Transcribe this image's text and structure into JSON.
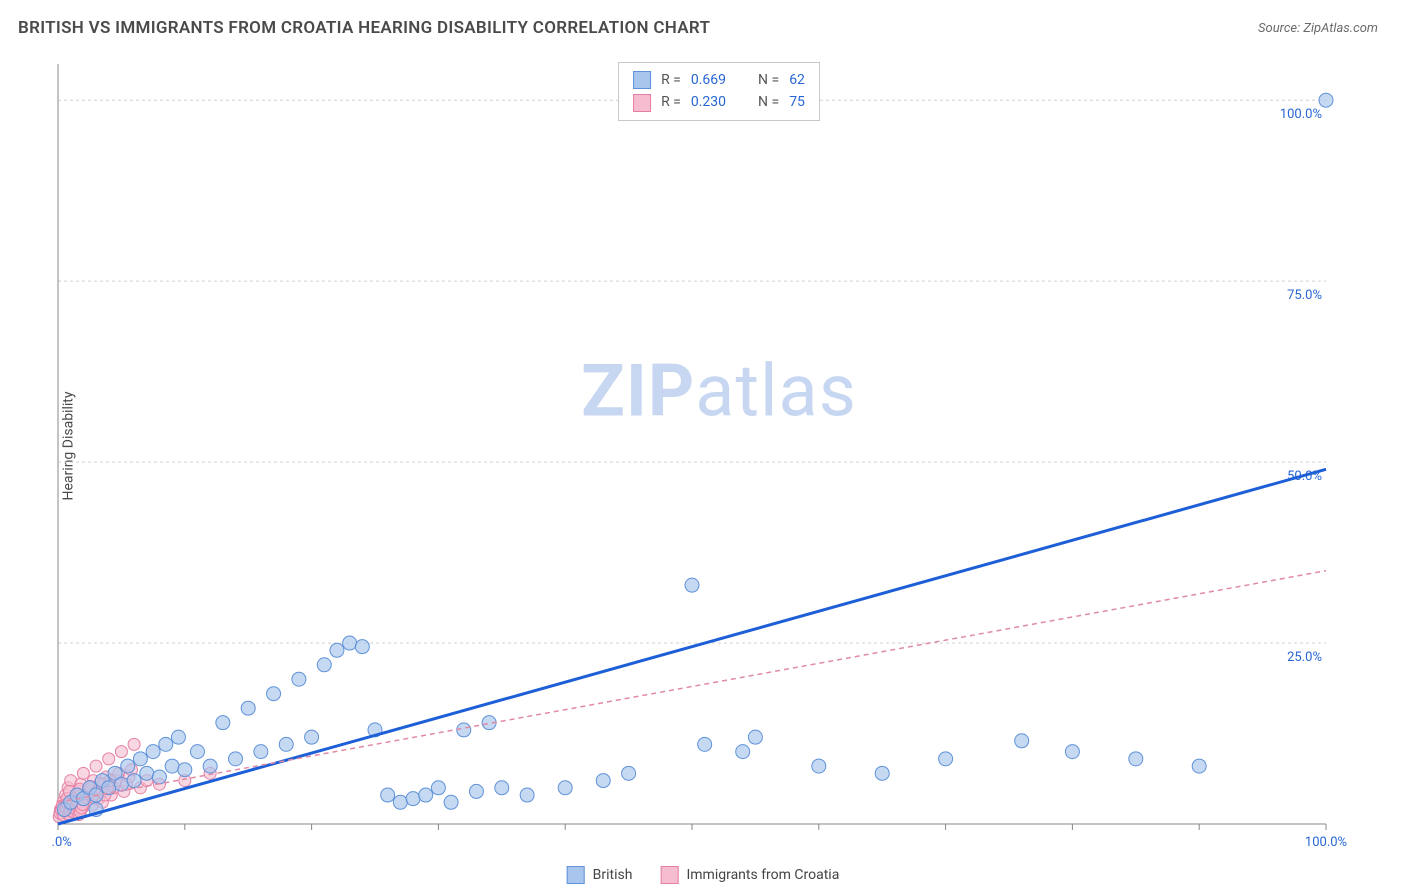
{
  "header": {
    "title": "BRITISH VS IMMIGRANTS FROM CROATIA HEARING DISABILITY CORRELATION CHART",
    "source": "Source: ZipAtlas.com"
  },
  "yaxis": {
    "label": "Hearing Disability"
  },
  "watermark": {
    "zip": "ZIP",
    "atlas": "atlas"
  },
  "chart": {
    "type": "scatter",
    "xlim": [
      0,
      100
    ],
    "ylim": [
      0,
      105
    ],
    "xtick_step": 10,
    "xtick_labels": {
      "0": "0.0%",
      "100": "100.0%"
    },
    "ytick_positions": [
      25,
      50,
      75,
      100
    ],
    "ytick_labels": [
      "25.0%",
      "50.0%",
      "75.0%",
      "100.0%"
    ],
    "grid_color": "#d0d0d0",
    "axis_color": "#888888",
    "background_color": "#ffffff",
    "series": [
      {
        "name": "British",
        "marker_fill": "#a7c5ed",
        "marker_stroke": "#5f92d8",
        "marker_opacity": 0.65,
        "marker_radius": 7,
        "trend": {
          "stroke": "#1d5fd6",
          "width": 3,
          "dash": "none",
          "x1": 0,
          "y1": 0,
          "x2": 100,
          "y2": 49
        },
        "legend_swatch_fill": "#a7c5ed",
        "legend_swatch_stroke": "#5f92d8",
        "stats": {
          "R": "0.669",
          "N": "62"
        },
        "points": [
          [
            0.5,
            2
          ],
          [
            1,
            3
          ],
          [
            1.5,
            4
          ],
          [
            2,
            3.5
          ],
          [
            2.5,
            5
          ],
          [
            3,
            4
          ],
          [
            3.5,
            6
          ],
          [
            4,
            5
          ],
          [
            4.5,
            7
          ],
          [
            5,
            5.5
          ],
          [
            5.5,
            8
          ],
          [
            6,
            6
          ],
          [
            6.5,
            9
          ],
          [
            7,
            7
          ],
          [
            7.5,
            10
          ],
          [
            8,
            6.5
          ],
          [
            8.5,
            11
          ],
          [
            9,
            8
          ],
          [
            9.5,
            12
          ],
          [
            10,
            7.5
          ],
          [
            11,
            10
          ],
          [
            12,
            8
          ],
          [
            13,
            14
          ],
          [
            14,
            9
          ],
          [
            15,
            16
          ],
          [
            16,
            10
          ],
          [
            17,
            18
          ],
          [
            18,
            11
          ],
          [
            19,
            20
          ],
          [
            20,
            12
          ],
          [
            21,
            22
          ],
          [
            22,
            24
          ],
          [
            23,
            25
          ],
          [
            24,
            24.5
          ],
          [
            25,
            13
          ],
          [
            26,
            4
          ],
          [
            27,
            3
          ],
          [
            28,
            3.5
          ],
          [
            29,
            4
          ],
          [
            30,
            5
          ],
          [
            31,
            3
          ],
          [
            32,
            13
          ],
          [
            33,
            4.5
          ],
          [
            34,
            14
          ],
          [
            35,
            5
          ],
          [
            37,
            4
          ],
          [
            40,
            5
          ],
          [
            43,
            6
          ],
          [
            45,
            7
          ],
          [
            50,
            33
          ],
          [
            51,
            11
          ],
          [
            54,
            10
          ],
          [
            55,
            12
          ],
          [
            60,
            8
          ],
          [
            65,
            7
          ],
          [
            70,
            9
          ],
          [
            76,
            11.5
          ],
          [
            80,
            10
          ],
          [
            85,
            9
          ],
          [
            90,
            8
          ],
          [
            100,
            100
          ],
          [
            3,
            2
          ]
        ]
      },
      {
        "name": "Immigrants from Croatia",
        "marker_fill": "#f5bdcf",
        "marker_stroke": "#e57fa4",
        "marker_opacity": 0.6,
        "marker_radius": 6,
        "trend": {
          "stroke": "#e08aa6",
          "width": 1.5,
          "dash": "5 4",
          "x1": 0,
          "y1": 3,
          "x2": 100,
          "y2": 35
        },
        "legend_swatch_fill": "#f5bdcf",
        "legend_swatch_stroke": "#e57fa4",
        "stats": {
          "R": "0.230",
          "N": "75"
        },
        "points": [
          [
            0.2,
            2
          ],
          [
            0.4,
            3
          ],
          [
            0.6,
            4
          ],
          [
            0.8,
            5
          ],
          [
            1,
            6
          ],
          [
            1.2,
            2.5
          ],
          [
            1.4,
            3.5
          ],
          [
            1.6,
            4.5
          ],
          [
            1.8,
            5.5
          ],
          [
            2,
            7
          ],
          [
            2.2,
            3
          ],
          [
            2.4,
            4
          ],
          [
            2.6,
            5
          ],
          [
            2.8,
            6
          ],
          [
            3,
            8
          ],
          [
            3.2,
            3.5
          ],
          [
            3.4,
            4.5
          ],
          [
            3.6,
            5.5
          ],
          [
            3.8,
            6.5
          ],
          [
            4,
            9
          ],
          [
            4.2,
            4
          ],
          [
            4.4,
            5
          ],
          [
            4.6,
            6
          ],
          [
            4.8,
            7
          ],
          [
            5,
            10
          ],
          [
            5.2,
            4.5
          ],
          [
            5.4,
            5.5
          ],
          [
            5.6,
            6.5
          ],
          [
            5.8,
            7.5
          ],
          [
            6,
            11
          ],
          [
            0.3,
            1.5
          ],
          [
            0.5,
            2.5
          ],
          [
            0.7,
            3.5
          ],
          [
            0.9,
            4.5
          ],
          [
            1.1,
            1.8
          ],
          [
            1.3,
            2.8
          ],
          [
            1.5,
            3.8
          ],
          [
            1.7,
            4.8
          ],
          [
            1.9,
            2.2
          ],
          [
            2.1,
            3.2
          ],
          [
            2.3,
            4.2
          ],
          [
            2.5,
            5.2
          ],
          [
            2.7,
            2.6
          ],
          [
            2.9,
            3.6
          ],
          [
            3.1,
            4.6
          ],
          [
            3.3,
            5.6
          ],
          [
            3.5,
            3
          ],
          [
            3.7,
            4
          ],
          [
            3.9,
            5
          ],
          [
            4.1,
            6
          ],
          [
            0.1,
            1
          ],
          [
            0.15,
            1.5
          ],
          [
            0.25,
            2
          ],
          [
            0.35,
            2.5
          ],
          [
            0.45,
            1.2
          ],
          [
            0.55,
            1.8
          ],
          [
            0.65,
            2.3
          ],
          [
            0.75,
            2.8
          ],
          [
            0.85,
            1.4
          ],
          [
            0.95,
            1.9
          ],
          [
            1.05,
            2.4
          ],
          [
            1.15,
            2.9
          ],
          [
            1.25,
            1.6
          ],
          [
            1.35,
            2.1
          ],
          [
            1.45,
            2.6
          ],
          [
            1.55,
            3.1
          ],
          [
            1.65,
            1.3
          ],
          [
            1.75,
            1.7
          ],
          [
            1.85,
            2.2
          ],
          [
            1.95,
            2.7
          ],
          [
            6.5,
            5
          ],
          [
            7,
            6
          ],
          [
            8,
            5.5
          ],
          [
            10,
            6
          ],
          [
            12,
            7
          ]
        ]
      }
    ]
  },
  "legend_top": {
    "r_label": "R =",
    "n_label": "N ="
  },
  "legend_bottom": {
    "items": [
      "British",
      "Immigrants from Croatia"
    ]
  }
}
